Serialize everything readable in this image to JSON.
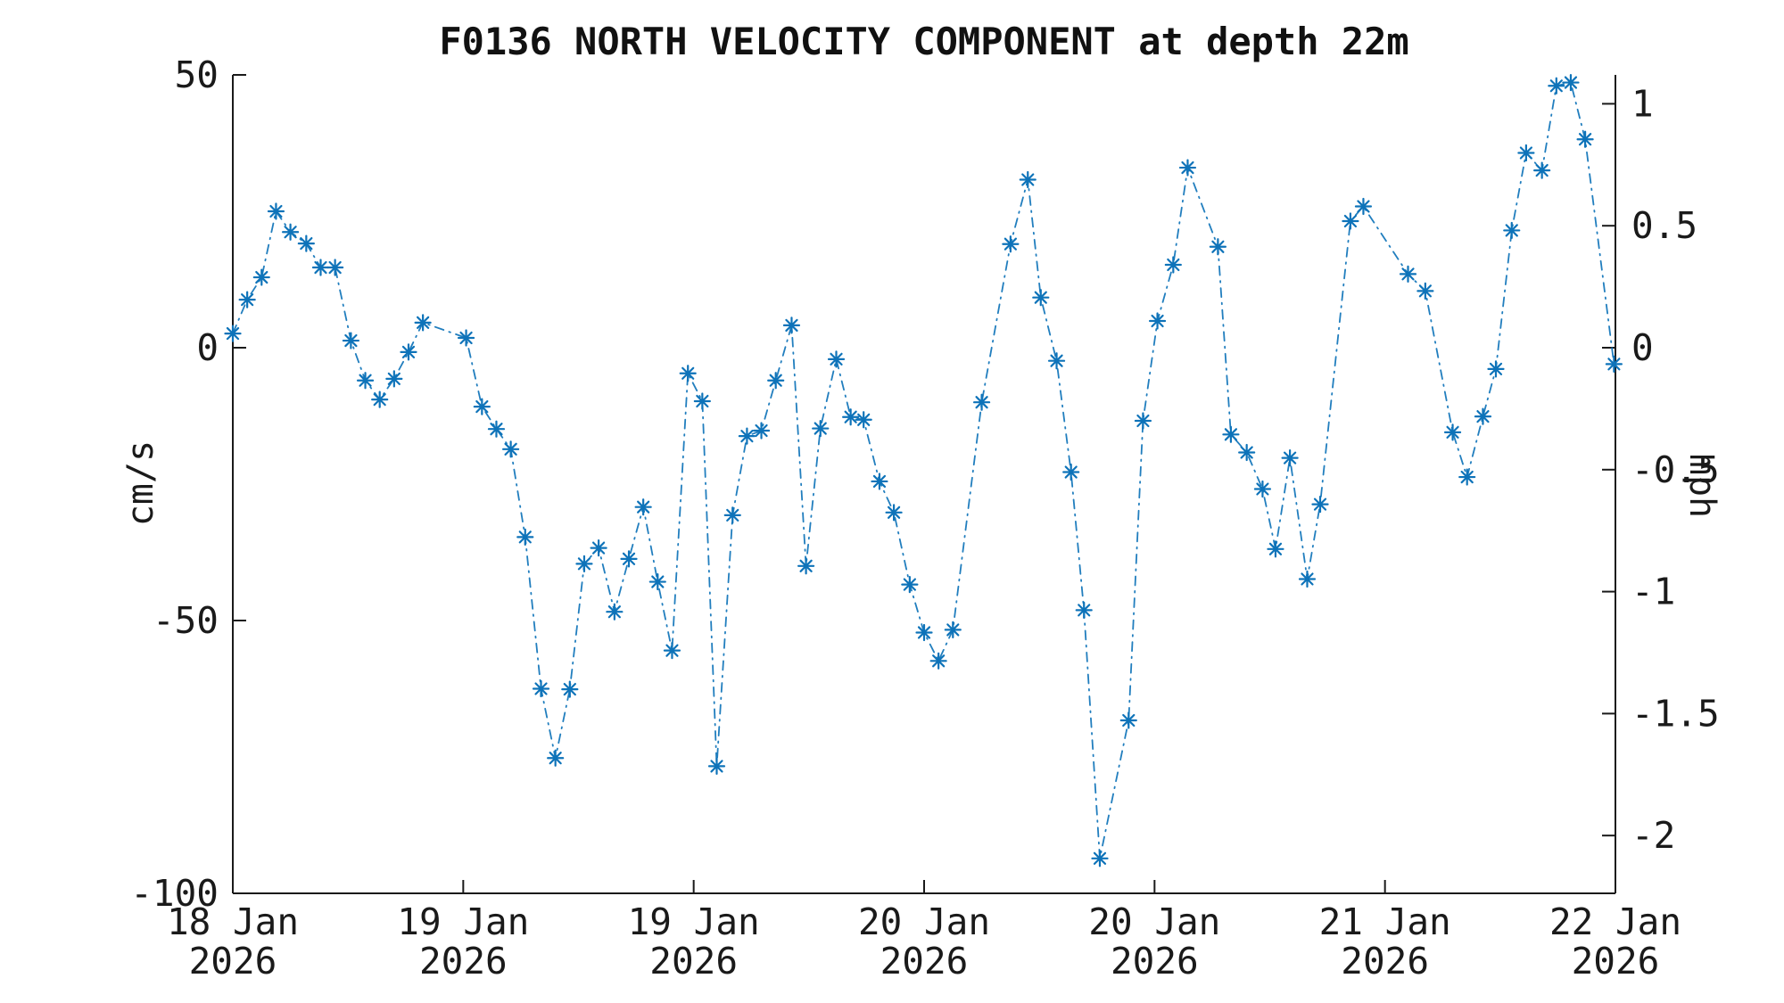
{
  "chart_data": {
    "type": "line",
    "title": "F0136 NORTH VELOCITY COMPONENT at depth 22m",
    "ylabel_left": "cm/s",
    "ylabel_right": "mph",
    "x_axis": {
      "unit": "hours after 18 Jan 2026 00:00",
      "range_hours": [
        0,
        96
      ],
      "tick_hours": [
        0,
        16,
        32,
        48,
        64,
        80,
        96
      ],
      "tick_labels_line1": [
        "18 Jan",
        "19 Jan",
        "19 Jan",
        "20 Jan",
        "20 Jan",
        "21 Jan",
        "22 Jan"
      ],
      "tick_labels_line2": [
        "2026",
        "2026",
        "2026",
        "2026",
        "2026",
        "2026",
        "2026"
      ]
    },
    "y_axis_left": {
      "unit": "cm/s",
      "range": [
        -100,
        50
      ],
      "ticks": [
        50,
        0,
        -50,
        -100
      ],
      "tick_labels": [
        "50",
        "0",
        "-50",
        "-100"
      ]
    },
    "y_axis_right": {
      "unit": "mph",
      "ticks_mph": [
        1,
        0.5,
        0,
        -0.5,
        -1,
        -1.5,
        -2
      ],
      "tick_labels": [
        "1",
        "0.5",
        "0",
        "-0.5",
        "-1",
        "-1.5",
        "-2"
      ],
      "cm_s_per_mph": 44.704
    },
    "grid": "off",
    "legend": "none",
    "line_style": "dash-dot",
    "marker": "asterisk",
    "line_color": "#0e73b9",
    "axis_color": "#1a1a1a",
    "series_name": "north velocity component",
    "points_t_hours_v_cms": [
      [
        0.0,
        2.6
      ],
      [
        1.0,
        8.8
      ],
      [
        2.0,
        12.9
      ],
      [
        3.0,
        25.0
      ],
      [
        4.0,
        21.2
      ],
      [
        5.1,
        19.1
      ],
      [
        6.1,
        14.7
      ],
      [
        7.1,
        14.7
      ],
      [
        8.2,
        1.3
      ],
      [
        9.2,
        -6.0
      ],
      [
        10.2,
        -9.5
      ],
      [
        11.2,
        -5.7
      ],
      [
        12.2,
        -0.8
      ],
      [
        13.2,
        4.6
      ],
      [
        16.2,
        1.8
      ],
      [
        17.3,
        -10.8
      ],
      [
        18.3,
        -14.9
      ],
      [
        19.3,
        -18.6
      ],
      [
        20.3,
        -34.7
      ],
      [
        21.4,
        -62.5
      ],
      [
        22.4,
        -75.2
      ],
      [
        23.4,
        -62.6
      ],
      [
        24.4,
        -39.6
      ],
      [
        25.4,
        -36.7
      ],
      [
        26.5,
        -48.4
      ],
      [
        27.5,
        -38.7
      ],
      [
        28.5,
        -29.2
      ],
      [
        29.5,
        -42.9
      ],
      [
        30.5,
        -55.5
      ],
      [
        31.6,
        -4.7
      ],
      [
        32.6,
        -9.8
      ],
      [
        33.6,
        -76.7
      ],
      [
        34.7,
        -30.7
      ],
      [
        35.7,
        -16.2
      ],
      [
        36.7,
        -15.2
      ],
      [
        37.7,
        -6.0
      ],
      [
        38.8,
        4.1
      ],
      [
        39.8,
        -40.0
      ],
      [
        40.8,
        -14.8
      ],
      [
        41.9,
        -2.1
      ],
      [
        42.9,
        -12.7
      ],
      [
        43.8,
        -13.2
      ],
      [
        44.9,
        -24.5
      ],
      [
        45.9,
        -30.2
      ],
      [
        47.0,
        -43.4
      ],
      [
        48.0,
        -52.2
      ],
      [
        49.0,
        -57.4
      ],
      [
        50.0,
        -51.7
      ],
      [
        52.0,
        -10.0
      ],
      [
        54.0,
        19.0
      ],
      [
        55.2,
        30.8
      ],
      [
        56.1,
        9.2
      ],
      [
        57.2,
        -2.4
      ],
      [
        58.2,
        -22.8
      ],
      [
        59.1,
        -48.1
      ],
      [
        60.2,
        -93.6
      ],
      [
        62.2,
        -68.3
      ],
      [
        63.2,
        -13.4
      ],
      [
        64.2,
        4.9
      ],
      [
        65.3,
        15.2
      ],
      [
        66.3,
        33.0
      ],
      [
        68.4,
        18.5
      ],
      [
        69.3,
        -15.9
      ],
      [
        70.4,
        -19.2
      ],
      [
        71.5,
        -25.9
      ],
      [
        72.4,
        -36.9
      ],
      [
        73.4,
        -20.2
      ],
      [
        74.6,
        -42.4
      ],
      [
        75.5,
        -28.7
      ],
      [
        77.6,
        23.2
      ],
      [
        78.5,
        25.9
      ],
      [
        81.6,
        13.5
      ],
      [
        82.8,
        10.4
      ],
      [
        84.7,
        -15.5
      ],
      [
        85.7,
        -23.7
      ],
      [
        86.8,
        -12.6
      ],
      [
        87.7,
        -3.9
      ],
      [
        88.8,
        21.5
      ],
      [
        89.8,
        35.7
      ],
      [
        90.9,
        32.5
      ],
      [
        91.9,
        48.0
      ],
      [
        92.9,
        48.6
      ],
      [
        93.9,
        38.2
      ],
      [
        95.9,
        -3.0
      ]
    ]
  }
}
